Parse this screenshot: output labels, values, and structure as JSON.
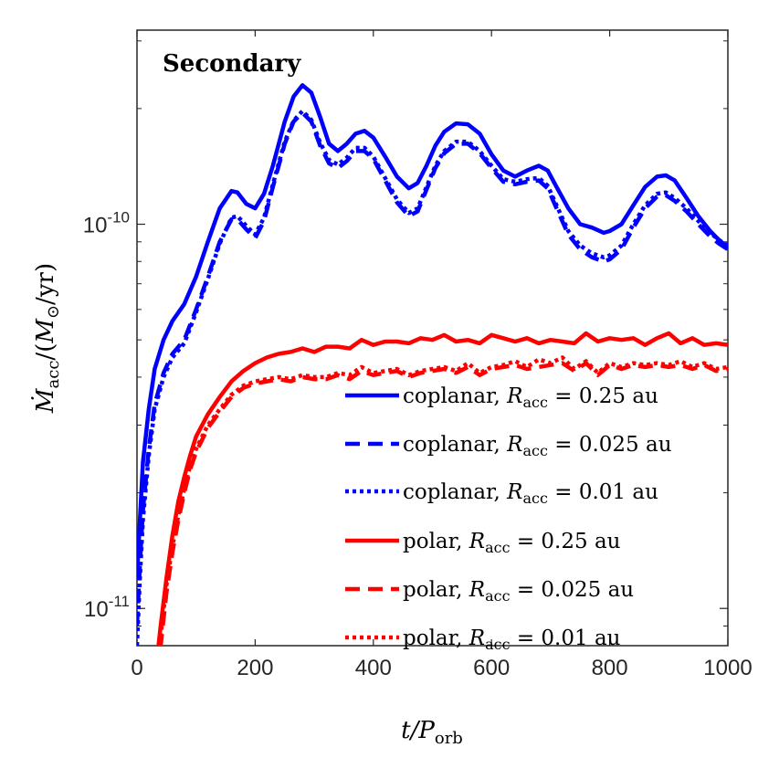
{
  "chart_data": {
    "type": "line",
    "title": "Secondary",
    "xlabel": "t/P_orb",
    "ylabel": "Ṁ_acc/(M_⊙/yr)",
    "xlim": [
      0,
      1000
    ],
    "ylim": [
      8e-12,
      3.2e-10
    ],
    "yscale": "log",
    "grid": false,
    "legend_position": "bottom-right",
    "x_ticks": [
      {
        "value": 0,
        "label": "0"
      },
      {
        "value": 200,
        "label": "200"
      },
      {
        "value": 400,
        "label": "400"
      },
      {
        "value": 600,
        "label": "600"
      },
      {
        "value": 800,
        "label": "800"
      },
      {
        "value": 1000,
        "label": "1000"
      }
    ],
    "y_ticks": [
      {
        "value": 1e-10,
        "base": "10",
        "exp": "-10"
      },
      {
        "value": 1e-11,
        "base": "10",
        "exp": "-11"
      }
    ],
    "series": [
      {
        "name": "coplanar, R_acc = 0.25 au",
        "color": "#0000ff",
        "style": "solid",
        "x": [
          0,
          5,
          10,
          20,
          30,
          45,
          60,
          80,
          100,
          120,
          140,
          160,
          170,
          185,
          200,
          215,
          230,
          250,
          265,
          280,
          295,
          310,
          325,
          340,
          355,
          370,
          385,
          400,
          420,
          440,
          460,
          475,
          490,
          505,
          520,
          540,
          560,
          580,
          600,
          620,
          640,
          660,
          680,
          695,
          710,
          730,
          750,
          770,
          790,
          800,
          820,
          840,
          860,
          880,
          895,
          910,
          930,
          950,
          970,
          985,
          1000
        ],
        "y": [
          1.2e-11,
          1.7e-11,
          2.4e-11,
          3.3e-11,
          4.2e-11,
          5e-11,
          5.6e-11,
          6.2e-11,
          7.3e-11,
          9e-11,
          1.1e-10,
          1.22e-10,
          1.21e-10,
          1.13e-10,
          1.1e-10,
          1.2e-10,
          1.42e-10,
          1.85e-10,
          2.15e-10,
          2.3e-10,
          2.2e-10,
          1.9e-10,
          1.62e-10,
          1.55e-10,
          1.62e-10,
          1.72e-10,
          1.75e-10,
          1.68e-10,
          1.5e-10,
          1.33e-10,
          1.24e-10,
          1.28e-10,
          1.42e-10,
          1.6e-10,
          1.74e-10,
          1.83e-10,
          1.82e-10,
          1.72e-10,
          1.52e-10,
          1.38e-10,
          1.33e-10,
          1.38e-10,
          1.42e-10,
          1.38e-10,
          1.25e-10,
          1.1e-10,
          1e-10,
          9.8e-11,
          9.5e-11,
          9.6e-11,
          1e-10,
          1.12e-10,
          1.25e-10,
          1.33e-10,
          1.34e-10,
          1.3e-10,
          1.17e-10,
          1.05e-10,
          9.6e-11,
          9.1e-11,
          8.7e-11
        ]
      },
      {
        "name": "coplanar, R_acc = 0.025 au",
        "color": "#0000ff",
        "style": "dashed",
        "x": [
          0,
          5,
          10,
          20,
          30,
          45,
          60,
          80,
          100,
          120,
          140,
          160,
          170,
          185,
          200,
          215,
          230,
          250,
          265,
          280,
          295,
          310,
          325,
          340,
          355,
          370,
          385,
          400,
          420,
          440,
          460,
          475,
          490,
          505,
          520,
          540,
          560,
          580,
          600,
          620,
          640,
          660,
          680,
          695,
          710,
          730,
          750,
          770,
          790,
          800,
          820,
          840,
          860,
          880,
          895,
          910,
          930,
          950,
          970,
          985,
          1000
        ],
        "y": [
          9e-12,
          1.3e-11,
          1.8e-11,
          2.6e-11,
          3.4e-11,
          4.1e-11,
          4.6e-11,
          5e-11,
          6e-11,
          7.3e-11,
          9e-11,
          1.03e-10,
          1.03e-10,
          9.7e-11,
          9.2e-11,
          1.02e-10,
          1.25e-10,
          1.62e-10,
          1.85e-10,
          1.95e-10,
          1.85e-10,
          1.6e-10,
          1.44e-10,
          1.4e-10,
          1.46e-10,
          1.55e-10,
          1.55e-10,
          1.48e-10,
          1.3e-10,
          1.14e-10,
          1.05e-10,
          1.08e-10,
          1.23e-10,
          1.4e-10,
          1.53e-10,
          1.62e-10,
          1.62e-10,
          1.53e-10,
          1.4e-10,
          1.29e-10,
          1.27e-10,
          1.29e-10,
          1.3e-10,
          1.24e-10,
          1.1e-10,
          9.4e-11,
          8.6e-11,
          8.2e-11,
          8e-11,
          8.1e-11,
          8.6e-11,
          9.8e-11,
          1.1e-10,
          1.18e-10,
          1.19e-10,
          1.15e-10,
          1.08e-10,
          1e-10,
          9.3e-11,
          8.9e-11,
          8.6e-11
        ]
      },
      {
        "name": "coplanar, R_acc = 0.01 au",
        "color": "#0000ff",
        "style": "dotted",
        "x": [
          0,
          5,
          10,
          20,
          30,
          45,
          60,
          80,
          100,
          120,
          140,
          160,
          170,
          185,
          200,
          215,
          230,
          250,
          265,
          280,
          295,
          310,
          325,
          340,
          355,
          370,
          385,
          400,
          420,
          440,
          460,
          475,
          490,
          505,
          520,
          540,
          560,
          580,
          600,
          620,
          640,
          660,
          680,
          695,
          710,
          730,
          750,
          770,
          790,
          800,
          820,
          840,
          860,
          880,
          895,
          910,
          930,
          950,
          970,
          985,
          1000
        ],
        "y": [
          8e-12,
          1.2e-11,
          1.7e-11,
          2.5e-11,
          3.3e-11,
          4e-11,
          4.5e-11,
          4.9e-11,
          5.9e-11,
          7.2e-11,
          8.9e-11,
          1.04e-10,
          1.05e-10,
          9.9e-11,
          9.4e-11,
          1.04e-10,
          1.27e-10,
          1.64e-10,
          1.86e-10,
          1.97e-10,
          1.87e-10,
          1.63e-10,
          1.47e-10,
          1.43e-10,
          1.49e-10,
          1.58e-10,
          1.58e-10,
          1.5e-10,
          1.32e-10,
          1.16e-10,
          1.07e-10,
          1.1e-10,
          1.25e-10,
          1.42e-10,
          1.55e-10,
          1.64e-10,
          1.64e-10,
          1.55e-10,
          1.42e-10,
          1.31e-10,
          1.29e-10,
          1.31e-10,
          1.32e-10,
          1.26e-10,
          1.12e-10,
          9.6e-11,
          8.8e-11,
          8.4e-11,
          8.2e-11,
          8.3e-11,
          8.8e-11,
          1e-10,
          1.12e-10,
          1.2e-10,
          1.21e-10,
          1.17e-10,
          1.1e-10,
          1.02e-10,
          9.5e-11,
          9.1e-11,
          8.8e-11
        ]
      },
      {
        "name": "polar, R_acc = 0.25 au",
        "color": "#ff0000",
        "style": "solid",
        "x": [
          30,
          40,
          50,
          60,
          70,
          80,
          90,
          100,
          120,
          140,
          160,
          180,
          200,
          220,
          240,
          260,
          280,
          300,
          320,
          340,
          360,
          380,
          400,
          420,
          440,
          460,
          480,
          500,
          520,
          540,
          560,
          580,
          600,
          620,
          640,
          660,
          680,
          700,
          720,
          740,
          760,
          780,
          800,
          820,
          840,
          860,
          880,
          900,
          920,
          940,
          960,
          980,
          1000
        ],
        "y": [
          6.5e-12,
          9e-12,
          1.2e-11,
          1.55e-11,
          1.9e-11,
          2.2e-11,
          2.5e-11,
          2.8e-11,
          3.2e-11,
          3.55e-11,
          3.9e-11,
          4.15e-11,
          4.35e-11,
          4.5e-11,
          4.6e-11,
          4.65e-11,
          4.75e-11,
          4.65e-11,
          4.8e-11,
          4.8e-11,
          4.75e-11,
          5e-11,
          4.85e-11,
          4.95e-11,
          4.95e-11,
          4.9e-11,
          5.05e-11,
          5e-11,
          5.15e-11,
          4.95e-11,
          5e-11,
          4.9e-11,
          5.15e-11,
          5.05e-11,
          4.95e-11,
          5.05e-11,
          4.9e-11,
          5e-11,
          4.95e-11,
          4.9e-11,
          5.2e-11,
          4.95e-11,
          5.05e-11,
          5e-11,
          5.05e-11,
          4.85e-11,
          5.05e-11,
          5.2e-11,
          4.9e-11,
          5.05e-11,
          4.85e-11,
          4.9e-11,
          4.85e-11
        ]
      },
      {
        "name": "polar, R_acc = 0.025 au",
        "color": "#ff0000",
        "style": "dashed",
        "x": [
          30,
          40,
          50,
          60,
          70,
          80,
          90,
          100,
          120,
          140,
          160,
          180,
          200,
          220,
          240,
          260,
          280,
          300,
          320,
          340,
          360,
          380,
          400,
          420,
          440,
          460,
          480,
          500,
          520,
          540,
          560,
          580,
          600,
          620,
          640,
          660,
          680,
          700,
          720,
          740,
          760,
          780,
          800,
          820,
          840,
          860,
          880,
          900,
          920,
          940,
          960,
          980,
          1000
        ],
        "y": [
          6e-12,
          8e-12,
          1.1e-11,
          1.4e-11,
          1.7e-11,
          2e-11,
          2.3e-11,
          2.55e-11,
          2.95e-11,
          3.25e-11,
          3.55e-11,
          3.75e-11,
          3.85e-11,
          3.9e-11,
          3.95e-11,
          3.9e-11,
          4e-11,
          3.95e-11,
          3.95e-11,
          4.05e-11,
          3.95e-11,
          4.15e-11,
          4.05e-11,
          4.1e-11,
          4.15e-11,
          4e-11,
          4.1e-11,
          4.15e-11,
          4.2e-11,
          4.1e-11,
          4.25e-11,
          4.05e-11,
          4.2e-11,
          4.25e-11,
          4.3e-11,
          4.2e-11,
          4.25e-11,
          4.3e-11,
          4.35e-11,
          4.15e-11,
          4.35e-11,
          4.05e-11,
          4.3e-11,
          4.2e-11,
          4.3e-11,
          4.25e-11,
          4.3e-11,
          4.25e-11,
          4.3e-11,
          4.2e-11,
          4.3e-11,
          4.15e-11,
          4.2e-11
        ]
      },
      {
        "name": "polar, R_acc = 0.01 au",
        "color": "#ff0000",
        "style": "dotted",
        "x": [
          30,
          40,
          50,
          60,
          70,
          80,
          90,
          100,
          120,
          140,
          160,
          180,
          200,
          220,
          240,
          260,
          280,
          300,
          320,
          340,
          360,
          380,
          400,
          420,
          440,
          460,
          480,
          500,
          520,
          540,
          560,
          580,
          600,
          620,
          640,
          660,
          680,
          700,
          720,
          740,
          760,
          780,
          800,
          820,
          840,
          860,
          880,
          900,
          920,
          940,
          960,
          980,
          1000
        ],
        "y": [
          6.5e-12,
          8.5e-12,
          1.15e-11,
          1.45e-11,
          1.75e-11,
          2.05e-11,
          2.35e-11,
          2.6e-11,
          3e-11,
          3.3e-11,
          3.6e-11,
          3.8e-11,
          3.9e-11,
          3.95e-11,
          4e-11,
          3.95e-11,
          4.05e-11,
          4e-11,
          4e-11,
          4.1e-11,
          4.05e-11,
          4.25e-11,
          4.1e-11,
          4.15e-11,
          4.2e-11,
          4.05e-11,
          4.15e-11,
          4.2e-11,
          4.25e-11,
          4.15e-11,
          4.35e-11,
          4.1e-11,
          4.25e-11,
          4.3e-11,
          4.4e-11,
          4.25e-11,
          4.45e-11,
          4.35e-11,
          4.5e-11,
          4.2e-11,
          4.4e-11,
          4.1e-11,
          4.35e-11,
          4.25e-11,
          4.35e-11,
          4.3e-11,
          4.35e-11,
          4.3e-11,
          4.4e-11,
          4.25e-11,
          4.35e-11,
          4.2e-11,
          4.25e-11
        ]
      }
    ]
  }
}
